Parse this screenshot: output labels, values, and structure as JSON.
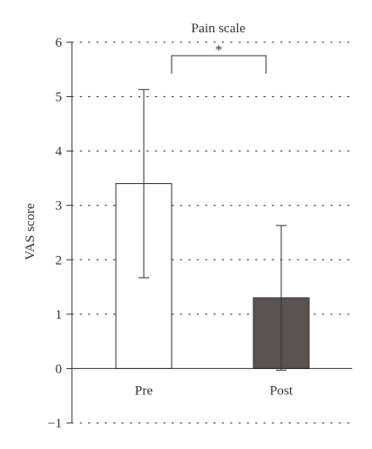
{
  "chart_data": {
    "type": "bar",
    "title": "Pain scale",
    "xlabel": "",
    "ylabel": "VAS score",
    "ylim": [
      -1,
      6
    ],
    "yticks": [
      -1,
      0,
      1,
      2,
      3,
      4,
      5,
      6
    ],
    "ytick_labels": [
      "−1",
      "0",
      "1",
      "2",
      "3",
      "4",
      "5",
      "6"
    ],
    "grid": "dotted horizontal",
    "categories": [
      "Pre",
      "Post"
    ],
    "values": [
      3.4,
      1.3
    ],
    "errors": [
      1.73,
      1.33
    ],
    "colors": [
      "#ffffff",
      "#5a5350"
    ],
    "significance": {
      "from": 0,
      "to": 1,
      "label": "*"
    }
  }
}
